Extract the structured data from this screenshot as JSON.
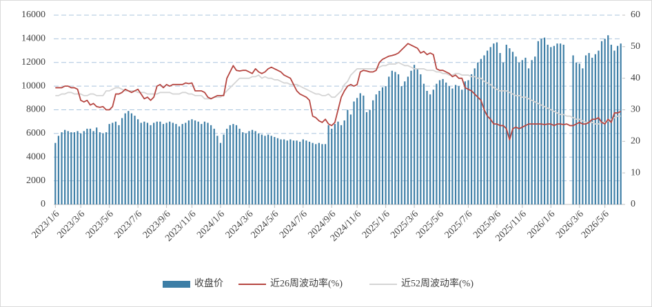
{
  "chart_data": {
    "type": "combo",
    "grid": true,
    "legend": "bottom",
    "ylim": [
      0,
      16000
    ],
    "yticks": [
      0,
      2000,
      4000,
      6000,
      8000,
      10000,
      12000,
      14000,
      16000
    ],
    "y2lim": [
      0,
      60
    ],
    "y2ticks": [
      0,
      10,
      20,
      30,
      40,
      50,
      60
    ],
    "categories": [
      "2023/1/6",
      null,
      null,
      null,
      null,
      null,
      null,
      null,
      "2023/3/6",
      null,
      null,
      null,
      null,
      null,
      null,
      null,
      null,
      "2023/5/6",
      null,
      null,
      null,
      null,
      null,
      null,
      null,
      null,
      "2023/7/6",
      null,
      null,
      null,
      null,
      null,
      null,
      null,
      null,
      "2023/9/6",
      null,
      null,
      null,
      null,
      null,
      null,
      null,
      "2023/11/6",
      null,
      null,
      null,
      null,
      null,
      null,
      null,
      null,
      "2024/1/6",
      null,
      null,
      null,
      null,
      null,
      null,
      null,
      null,
      "2024/3/6",
      null,
      null,
      null,
      null,
      null,
      null,
      null,
      "2024/5/6",
      null,
      null,
      null,
      null,
      null,
      null,
      null,
      null,
      "2024/7/6",
      null,
      null,
      null,
      null,
      null,
      null,
      null,
      null,
      "2024/9/6",
      null,
      null,
      null,
      null,
      null,
      null,
      null,
      "2024/11/6",
      null,
      null,
      null,
      null,
      null,
      null,
      null,
      null,
      "2025/1/6",
      null,
      null,
      null,
      null,
      null,
      null,
      null,
      null,
      "2025/3/6",
      null,
      null,
      null,
      null,
      null,
      null,
      null,
      "2025/5/6",
      null,
      null,
      null,
      null,
      null,
      null,
      null,
      null,
      "2025/7/6",
      null,
      null,
      null,
      null,
      null,
      null,
      null,
      null,
      "2025/9/6",
      null,
      null,
      null,
      null,
      null,
      null,
      null,
      "2025/11/6",
      null,
      null,
      null,
      null,
      null,
      null,
      null,
      null,
      "2026/1/6",
      null,
      null,
      null,
      null,
      null,
      null,
      null,
      null,
      "2026/3/6",
      null,
      null,
      null,
      null,
      null,
      null,
      null,
      "2026/5/6",
      null,
      null,
      null,
      null,
      null
    ],
    "series": [
      {
        "name": "收盘价",
        "type": "bar",
        "axis": "y",
        "color": "#3d7ea6",
        "values": [
          5200,
          5800,
          6100,
          6300,
          6200,
          6100,
          6100,
          6200,
          6000,
          6200,
          6400,
          6400,
          6200,
          6500,
          6100,
          6000,
          6100,
          6800,
          6900,
          7000,
          6700,
          7300,
          7700,
          7900,
          7700,
          7500,
          7200,
          6900,
          7000,
          6900,
          6700,
          6900,
          7000,
          7000,
          6800,
          6900,
          7000,
          6900,
          6800,
          6600,
          6800,
          6900,
          7100,
          7200,
          7100,
          7000,
          6800,
          7000,
          6900,
          6700,
          6400,
          5800,
          5200,
          5900,
          6400,
          6700,
          6800,
          6700,
          6400,
          6100,
          6000,
          6200,
          6300,
          6200,
          6000,
          5900,
          5800,
          5900,
          5800,
          5700,
          5600,
          5500,
          5500,
          5400,
          5500,
          5400,
          5400,
          5300,
          5500,
          5400,
          5300,
          5200,
          5100,
          5200,
          5100,
          5100,
          6700,
          6400,
          6800,
          7000,
          6700,
          7100,
          8000,
          7600,
          8700,
          9000,
          9400,
          9200,
          7800,
          8000,
          8800,
          9300,
          9600,
          9900,
          10000,
          10800,
          11300,
          11200,
          11000,
          10000,
          10400,
          10800,
          11300,
          11800,
          11500,
          11000,
          10200,
          9600,
          9300,
          9700,
          10200,
          10500,
          10600,
          10300,
          10000,
          9800,
          10100,
          10000,
          9700,
          10400,
          10500,
          11000,
          11500,
          12000,
          12300,
          12600,
          13000,
          13300,
          13600,
          13700,
          12800,
          12000,
          13500,
          13200,
          12900,
          12500,
          12000,
          12200,
          12400,
          11500,
          12200,
          12500,
          13800,
          14000,
          14100,
          13500,
          13300,
          13400,
          13600,
          13600,
          13500,
          null,
          null,
          12600,
          12000,
          11900,
          11500,
          12600,
          12800,
          12400,
          12700,
          13000,
          13800,
          14000,
          14300,
          13500,
          13000,
          13400,
          13600
        ]
      },
      {
        "name": "近26周波动率(%)",
        "type": "line",
        "axis": "y2",
        "color": "#b5443f",
        "values": [
          37,
          37,
          37,
          37.5,
          37.5,
          37,
          37,
          36.5,
          33,
          32.5,
          33,
          31.5,
          32,
          31,
          30.8,
          31,
          30,
          30,
          31,
          35,
          35,
          35.5,
          36.5,
          36,
          35.5,
          36,
          36.5,
          35,
          33.5,
          34,
          33,
          34,
          37.5,
          38,
          37,
          38,
          37.5,
          38,
          38,
          38,
          38,
          38.5,
          38.3,
          38.5,
          36,
          36,
          36,
          35.5,
          34,
          33.5,
          34,
          34.5,
          34.5,
          34.5,
          40,
          42,
          44,
          42.5,
          42.3,
          42.5,
          42.5,
          42,
          41.5,
          43,
          42,
          41.5,
          42,
          43,
          43.5,
          43,
          42.5,
          42,
          41,
          40.5,
          40,
          38,
          36,
          35,
          34.5,
          34,
          33,
          28,
          27.5,
          26.5,
          26,
          27,
          25.5,
          25,
          26,
          30,
          34,
          36,
          37.5,
          38,
          37.5,
          38,
          42,
          42.5,
          42.3,
          42,
          42,
          42.5,
          45,
          46,
          46.5,
          47,
          47.2,
          47.5,
          48,
          49,
          50,
          51,
          50.5,
          50,
          49.5,
          48,
          48.5,
          47.5,
          48,
          47.5,
          43,
          42.5,
          42.5,
          42,
          41.5,
          40.5,
          41,
          40,
          40,
          37,
          36.5,
          36,
          35,
          34,
          33,
          30,
          28,
          27,
          25.5,
          25.5,
          25,
          25,
          24,
          20.5,
          24,
          24.5,
          24,
          24.5,
          25,
          25.5,
          25.5,
          25.5,
          25.5,
          25.5,
          25.3,
          25.5,
          25.5,
          25,
          25.5,
          25.5,
          25.3,
          25.5,
          25,
          25,
          25.5,
          26,
          25.5,
          25.5,
          26,
          27,
          27,
          27.5,
          26,
          25.5,
          27,
          26,
          29,
          29,
          29.5
        ]
      },
      {
        "name": "近52周波动率(%)",
        "type": "line",
        "axis": "y2",
        "color": "#d4d4d4",
        "values": [
          34.5,
          34.5,
          35,
          35,
          35.5,
          35.5,
          35,
          35,
          35,
          34.5,
          34.5,
          35,
          35,
          34.5,
          34.5,
          34.5,
          36,
          36,
          36.5,
          37,
          37,
          36.5,
          36,
          36,
          36,
          36,
          35.5,
          35.5,
          35.5,
          35,
          35,
          35,
          35,
          35.5,
          35.5,
          35.5,
          35.5,
          35,
          35,
          35,
          35.5,
          35.5,
          35,
          35,
          34.5,
          34.5,
          34.5,
          33.5,
          33.5,
          33.5,
          34,
          34,
          34,
          35,
          36,
          37,
          38,
          39,
          40,
          40,
          40,
          40,
          40.5,
          40.5,
          41,
          40,
          40.5,
          40,
          40,
          39.5,
          39.5,
          39,
          38.5,
          38.5,
          38,
          38,
          38,
          37.5,
          37,
          36.5,
          36,
          35.5,
          35,
          35,
          34.5,
          34.5,
          35,
          34,
          34,
          35,
          36,
          38,
          39,
          41,
          42,
          43,
          43,
          43,
          43,
          43,
          43,
          43,
          43.5,
          44,
          44,
          44.5,
          44.5,
          44.5,
          45,
          44.5,
          44,
          44,
          43.5,
          43,
          43,
          43,
          43,
          42.5,
          42.5,
          42.5,
          42,
          42,
          41.5,
          41.5,
          41,
          41,
          41.5,
          41.5,
          41,
          41,
          41,
          40.5,
          40.5,
          40,
          40,
          39,
          38.5,
          38,
          37,
          36.5,
          36,
          36,
          36,
          35.5,
          35,
          34.5,
          34.5,
          34,
          34,
          33.5,
          33,
          32.5,
          32,
          31.5,
          31,
          30.5,
          30,
          29.5,
          29,
          28.5,
          28.5,
          28,
          28,
          27.5,
          27,
          27,
          26.5,
          26,
          26,
          26,
          25.5,
          25.5,
          26,
          26,
          26.5,
          27,
          27.5,
          28,
          28
        ]
      }
    ]
  }
}
